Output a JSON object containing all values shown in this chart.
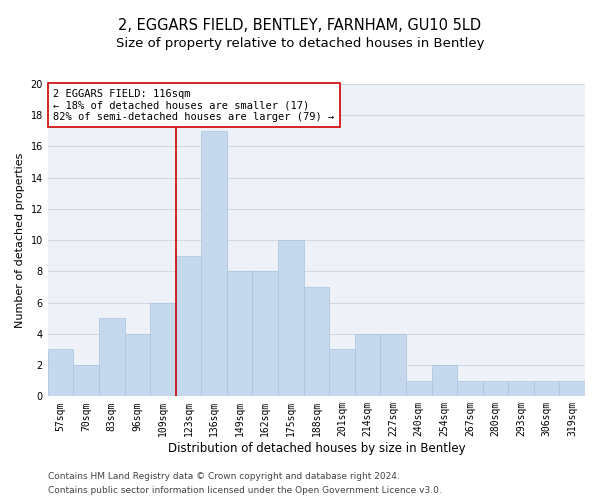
{
  "title1": "2, EGGARS FIELD, BENTLEY, FARNHAM, GU10 5LD",
  "title2": "Size of property relative to detached houses in Bentley",
  "xlabel": "Distribution of detached houses by size in Bentley",
  "ylabel": "Number of detached properties",
  "categories": [
    "57sqm",
    "70sqm",
    "83sqm",
    "96sqm",
    "109sqm",
    "123sqm",
    "136sqm",
    "149sqm",
    "162sqm",
    "175sqm",
    "188sqm",
    "201sqm",
    "214sqm",
    "227sqm",
    "240sqm",
    "254sqm",
    "267sqm",
    "280sqm",
    "293sqm",
    "306sqm",
    "319sqm"
  ],
  "values": [
    3,
    2,
    5,
    4,
    6,
    9,
    17,
    8,
    8,
    10,
    7,
    3,
    4,
    4,
    1,
    2,
    1,
    1,
    1,
    1,
    1
  ],
  "bar_color": "#c5d8ed",
  "bar_edge_color": "#a8c4dc",
  "vline_color": "#cc0000",
  "annotation_line1": "2 EGGARS FIELD: 116sqm",
  "annotation_line2": "← 18% of detached houses are smaller (17)",
  "annotation_line3": "82% of semi-detached houses are larger (79) →",
  "annotation_box_color": "#ffffff",
  "annotation_box_edge_color": "#cc0000",
  "ylim": [
    0,
    20
  ],
  "yticks": [
    0,
    2,
    4,
    6,
    8,
    10,
    12,
    14,
    16,
    18,
    20
  ],
  "grid_color": "#d0d8e8",
  "background_color": "#eef2f8",
  "footer1": "Contains HM Land Registry data © Crown copyright and database right 2024.",
  "footer2": "Contains public sector information licensed under the Open Government Licence v3.0.",
  "title1_fontsize": 10.5,
  "title2_fontsize": 9.5,
  "xlabel_fontsize": 8.5,
  "ylabel_fontsize": 8,
  "tick_fontsize": 7,
  "annotation_fontsize": 7.5,
  "footer_fontsize": 6.5
}
